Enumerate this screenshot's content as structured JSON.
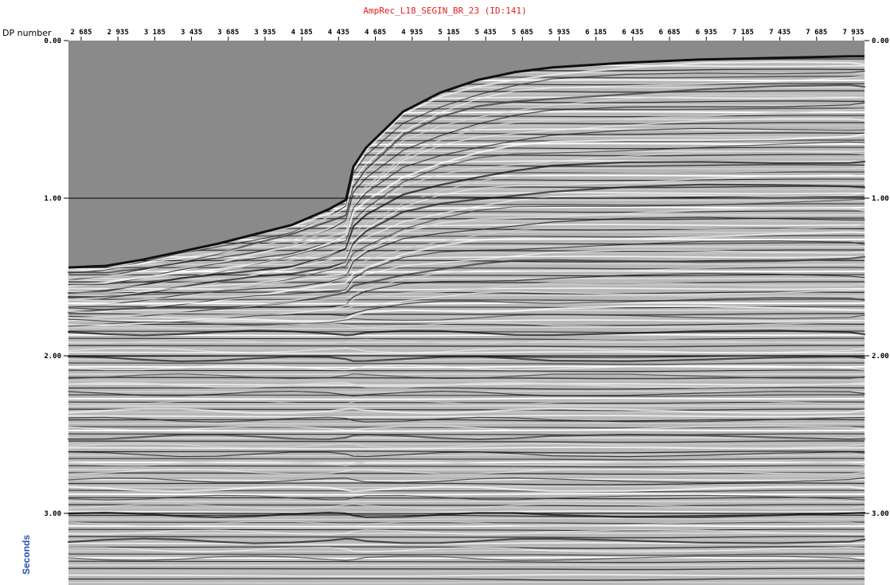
{
  "header": {
    "title": "AmpRec_L18_SEGIN_BR_23 (ID:141)",
    "x_axis_caption": "DP number",
    "y_axis_caption": "Seconds"
  },
  "colors": {
    "title": "#e02020",
    "y_caption": "#2a4fb0",
    "water": "#8a8a8a",
    "timeline": "#000000"
  },
  "chart_data": {
    "type": "seismic-section",
    "title": "AmpRec_L18_SEGIN_BR_23 (ID:141)",
    "xlabel": "DP number",
    "ylabel": "Seconds",
    "x_ticks": [
      "2 685",
      "2 935",
      "3 185",
      "3 435",
      "3 685",
      "3 935",
      "4 185",
      "4 435",
      "4 685",
      "4 935",
      "5 185",
      "5 435",
      "5 685",
      "5 935",
      "6 185",
      "6 435",
      "6 685",
      "6 935",
      "7 185",
      "7 435",
      "7 685",
      "7 935"
    ],
    "x_range": [
      2685,
      8035
    ],
    "y_ticks": [
      "0.00",
      "1.00",
      "2.00",
      "3.00"
    ],
    "y_tick_values": [
      0,
      1,
      2,
      3
    ],
    "y_range": [
      0,
      3.5
    ],
    "timelines": [
      1,
      2,
      3
    ],
    "seafloor": [
      {
        "x": 2685,
        "y": 1.44
      },
      {
        "x": 2935,
        "y": 1.43
      },
      {
        "x": 3185,
        "y": 1.39
      },
      {
        "x": 3435,
        "y": 1.34
      },
      {
        "x": 3685,
        "y": 1.29
      },
      {
        "x": 3935,
        "y": 1.23
      },
      {
        "x": 4185,
        "y": 1.17
      },
      {
        "x": 4435,
        "y": 1.07
      },
      {
        "x": 4550,
        "y": 1.01
      },
      {
        "x": 4600,
        "y": 0.8
      },
      {
        "x": 4685,
        "y": 0.68
      },
      {
        "x": 4935,
        "y": 0.45
      },
      {
        "x": 5185,
        "y": 0.33
      },
      {
        "x": 5435,
        "y": 0.25
      },
      {
        "x": 5685,
        "y": 0.2
      },
      {
        "x": 5935,
        "y": 0.17
      },
      {
        "x": 6435,
        "y": 0.14
      },
      {
        "x": 6935,
        "y": 0.12
      },
      {
        "x": 7435,
        "y": 0.11
      },
      {
        "x": 7935,
        "y": 0.1
      },
      {
        "x": 8035,
        "y": 0.1
      }
    ],
    "grid": true
  }
}
